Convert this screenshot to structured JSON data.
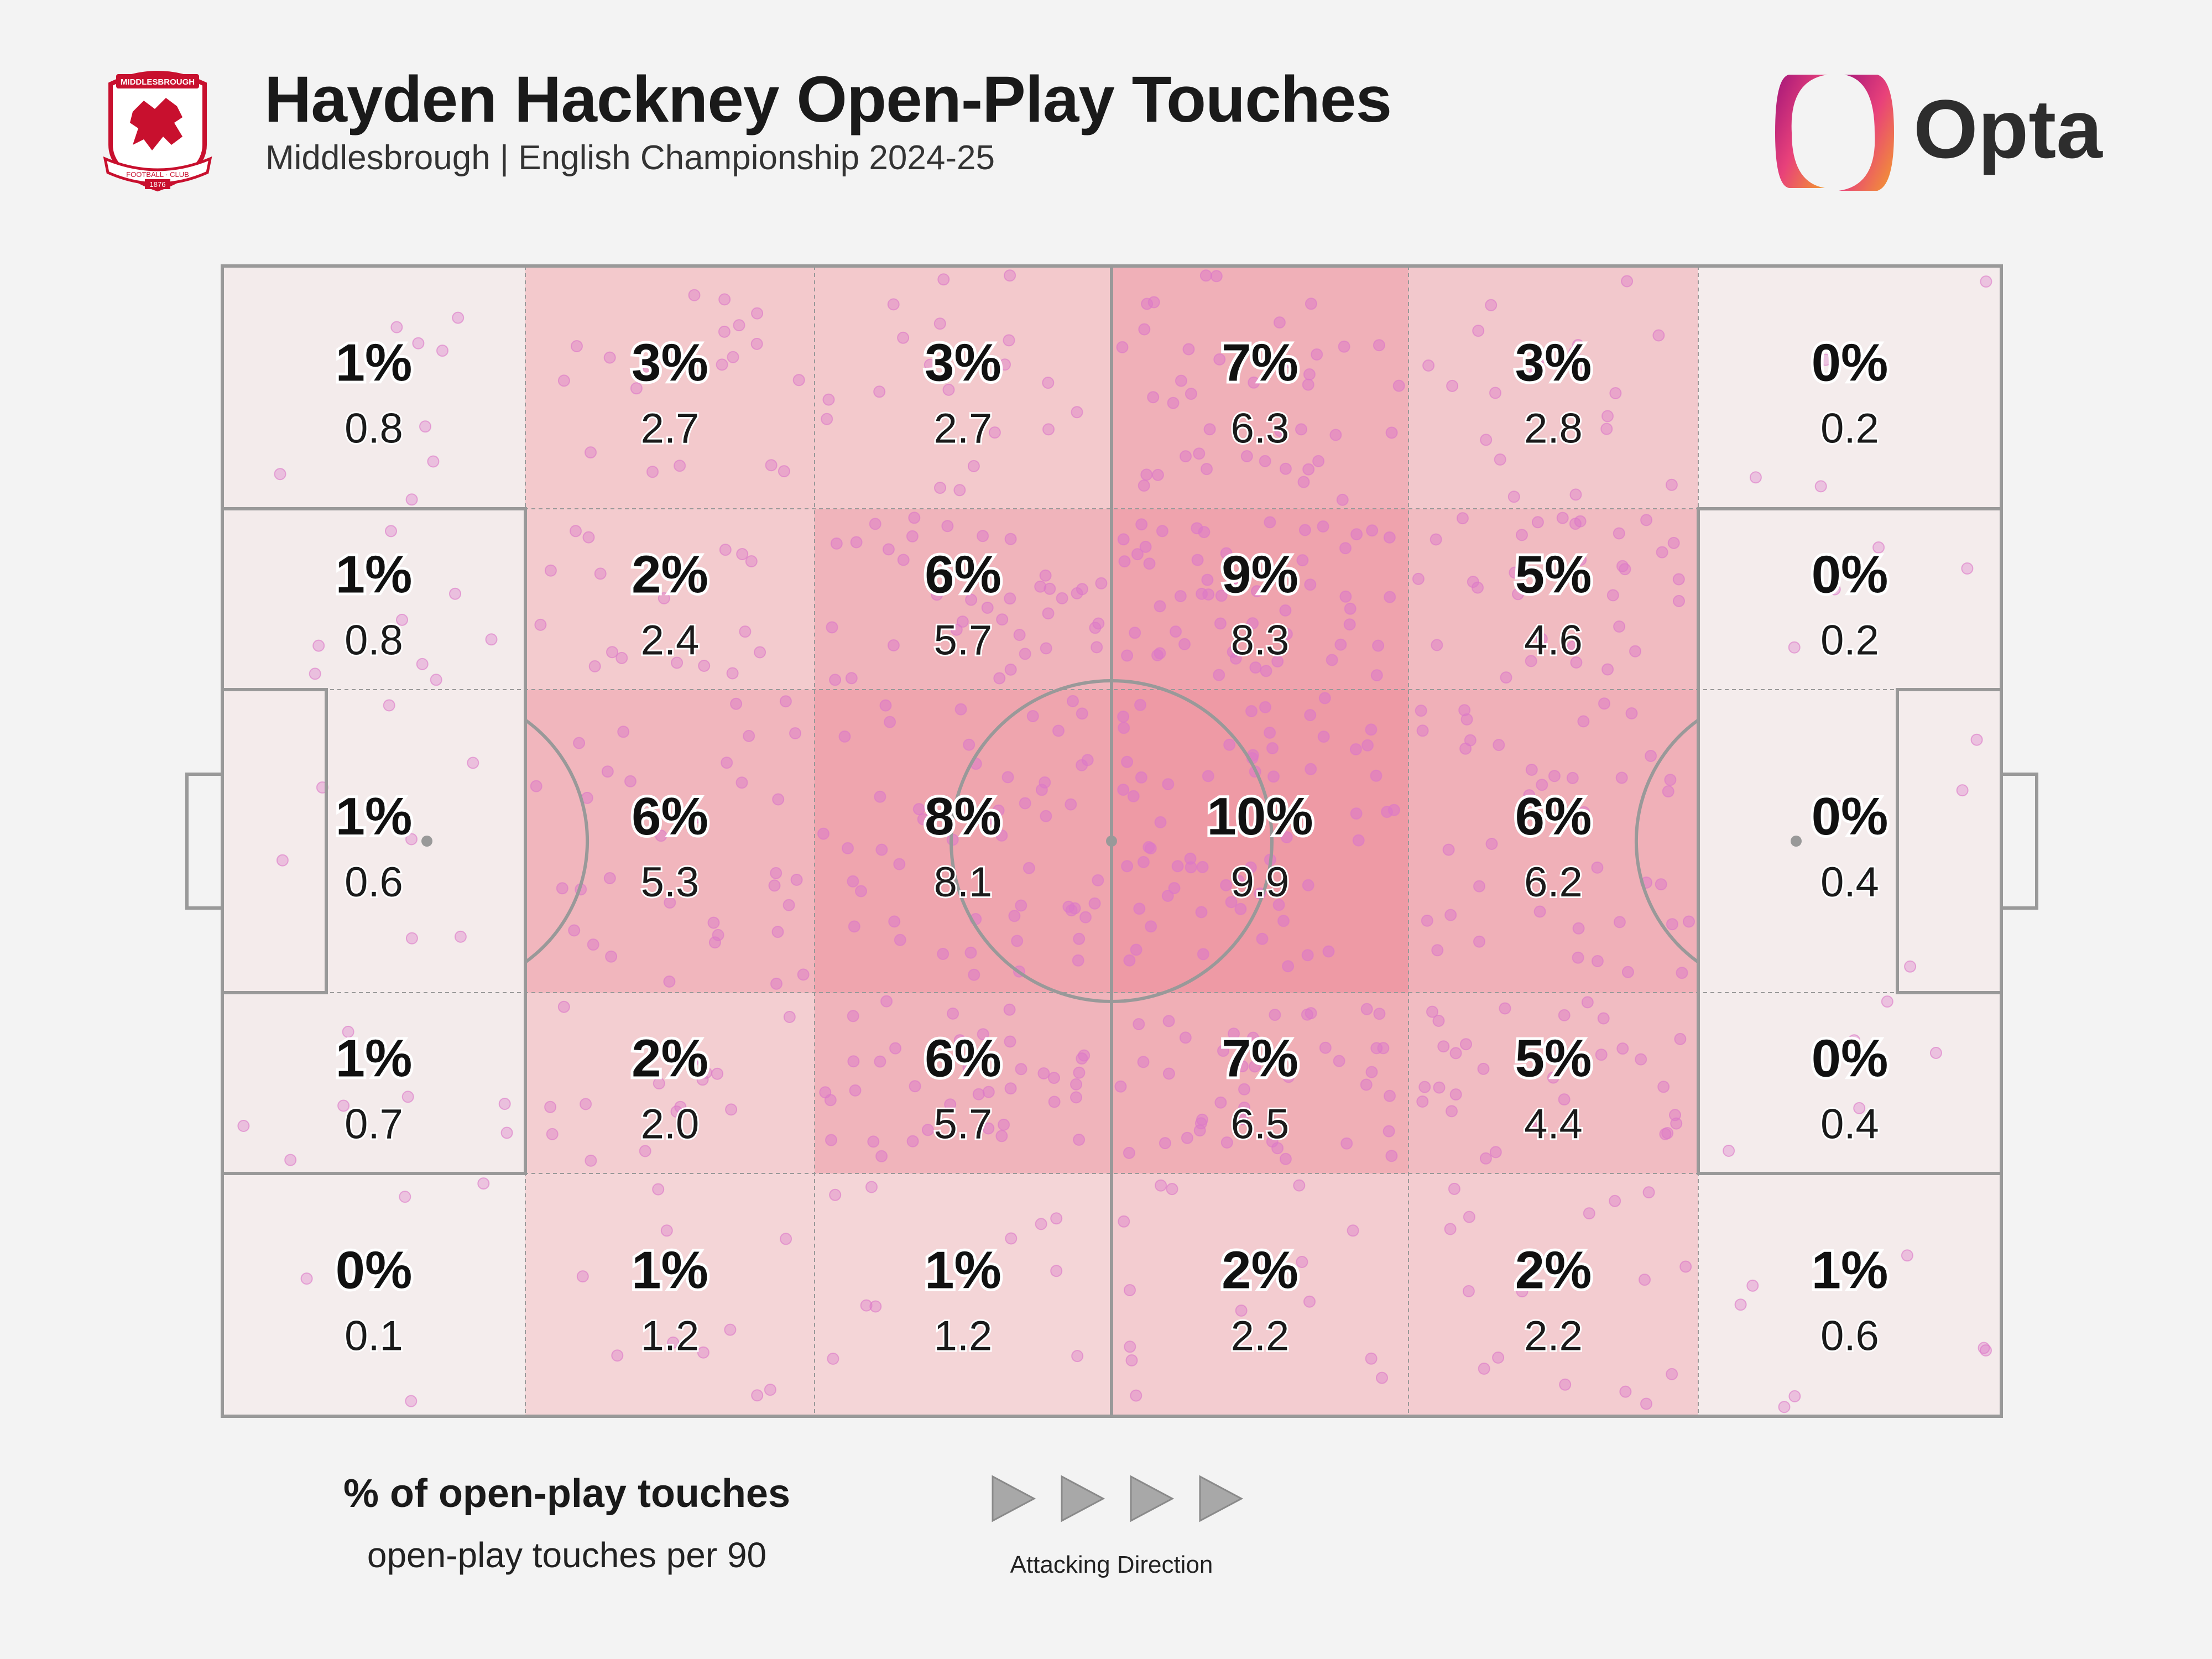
{
  "header": {
    "title": "Hayden Hackney Open-Play Touches",
    "subtitle": "Middlesbrough | English Championship 2024-25",
    "club_badge_text": "MIDDLESBROUGH FOOTBALL CLUB 1876",
    "opta_logo_text": "Opta"
  },
  "legend": {
    "pct_label": "% of open-play touches",
    "per90_label": "open-play touches per 90",
    "direction_label": "Attacking Direction"
  },
  "colors": {
    "background": "#f3f3f3",
    "pitch_lines": "#999999",
    "zone_min": "#f5e2e2",
    "zone_max": "#ee9aa5",
    "touch_dot": "#dc78c8",
    "opta_gradient": [
      "#a3167a",
      "#e8417a",
      "#f39c2c"
    ]
  },
  "chart_data": {
    "type": "heatmap",
    "title": "Hayden Hackney Open-Play Touches",
    "subtitle": "Middlesbrough | English Championship 2024-25",
    "attacking_direction": "left-to-right",
    "columns": 6,
    "rows": 5,
    "zones": [
      [
        {
          "pct": "1%",
          "per90": "0.8"
        },
        {
          "pct": "3%",
          "per90": "2.7"
        },
        {
          "pct": "3%",
          "per90": "2.7"
        },
        {
          "pct": "7%",
          "per90": "6.3"
        },
        {
          "pct": "3%",
          "per90": "2.8"
        },
        {
          "pct": "0%",
          "per90": "0.2"
        }
      ],
      [
        {
          "pct": "1%",
          "per90": "0.8"
        },
        {
          "pct": "2%",
          "per90": "2.4"
        },
        {
          "pct": "6%",
          "per90": "5.7"
        },
        {
          "pct": "9%",
          "per90": "8.3"
        },
        {
          "pct": "5%",
          "per90": "4.6"
        },
        {
          "pct": "0%",
          "per90": "0.2"
        }
      ],
      [
        {
          "pct": "1%",
          "per90": "0.6"
        },
        {
          "pct": "6%",
          "per90": "5.3"
        },
        {
          "pct": "8%",
          "per90": "8.1"
        },
        {
          "pct": "10%",
          "per90": "9.9"
        },
        {
          "pct": "6%",
          "per90": "6.2"
        },
        {
          "pct": "0%",
          "per90": "0.4"
        }
      ],
      [
        {
          "pct": "1%",
          "per90": "0.7"
        },
        {
          "pct": "2%",
          "per90": "2.0"
        },
        {
          "pct": "6%",
          "per90": "5.7"
        },
        {
          "pct": "7%",
          "per90": "6.5"
        },
        {
          "pct": "5%",
          "per90": "4.4"
        },
        {
          "pct": "0%",
          "per90": "0.4"
        }
      ],
      [
        {
          "pct": "0%",
          "per90": "0.1"
        },
        {
          "pct": "1%",
          "per90": "1.2"
        },
        {
          "pct": "1%",
          "per90": "1.2"
        },
        {
          "pct": "2%",
          "per90": "2.2"
        },
        {
          "pct": "2%",
          "per90": "2.2"
        },
        {
          "pct": "1%",
          "per90": "0.6"
        }
      ]
    ]
  }
}
